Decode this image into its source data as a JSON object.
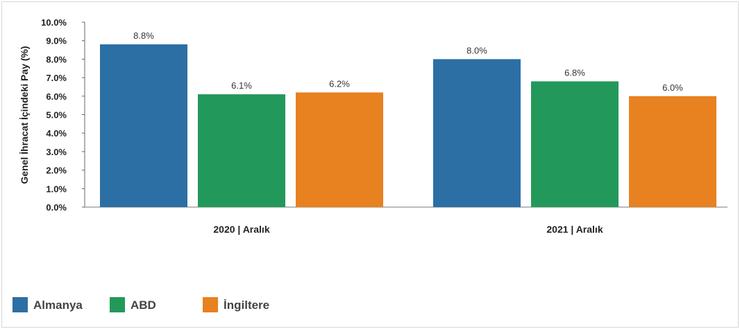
{
  "chart_data": {
    "type": "bar",
    "categories": [
      "2020 | Aralık",
      "2021 | Aralık"
    ],
    "series": [
      {
        "name": "Almanya",
        "color": "#2b6fa5",
        "values": [
          8.8,
          8.0
        ],
        "labels": [
          "8.8%",
          "8.0%"
        ]
      },
      {
        "name": "ABD",
        "color": "#22995a",
        "values": [
          6.1,
          6.8
        ],
        "labels": [
          "6.1%",
          "6.8%"
        ]
      },
      {
        "name": "İngiltere",
        "color": "#e8811f",
        "values": [
          6.2,
          6.0
        ],
        "labels": [
          "6.2%",
          "6.0%"
        ]
      }
    ],
    "ylabel": "Genel İhracat İçindeki Pay (%)",
    "ylim": [
      0,
      10
    ],
    "yticks": [
      0,
      1,
      2,
      3,
      4,
      5,
      6,
      7,
      8,
      9,
      10
    ],
    "ytick_labels": [
      "0.0%",
      "1.0%",
      "2.0%",
      "3.0%",
      "4.0%",
      "5.0%",
      "6.0%",
      "7.0%",
      "8.0%",
      "9.0%",
      "10.0%"
    ],
    "grid": false,
    "legend": "bottom-left"
  }
}
